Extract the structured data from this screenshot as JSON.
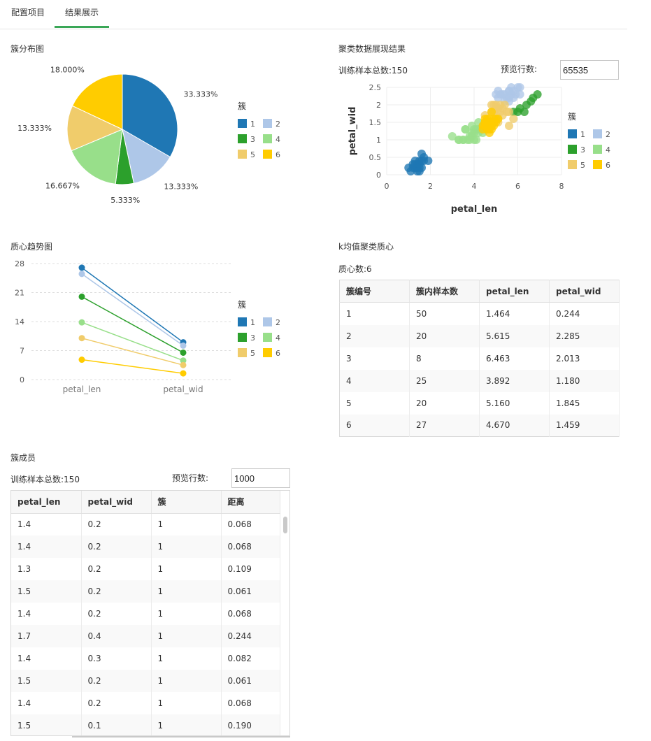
{
  "tabs": [
    "配置项目",
    "结果展示"
  ],
  "colors": [
    "#1f77b4",
    "#aec7e8",
    "#2ca02c",
    "#98df8a",
    "#f0cc6b",
    "#ffcc00"
  ],
  "pie": {
    "title": "簇分布图",
    "legend_title": "簇",
    "chart_data": {
      "type": "pie",
      "labels": [
        "1",
        "2",
        "3",
        "4",
        "5",
        "6"
      ],
      "values": [
        33.333,
        13.333,
        5.333,
        16.667,
        13.333,
        18.0
      ],
      "value_labels": [
        "33.333%",
        "13.333%",
        "5.333%",
        "16.667%",
        "13.333%",
        "18.000%"
      ]
    }
  },
  "scatter": {
    "title": "聚类数据展现结果",
    "sample_label": "训练样本总数:150",
    "preview_label": "预览行数:",
    "preview_value": "65535",
    "legend_title": "簇",
    "chart_data": {
      "type": "scatter",
      "xlabel": "petal_len",
      "ylabel": "petal_wid",
      "xlim": [
        0,
        8
      ],
      "ylim": [
        0,
        2.5
      ],
      "xticks": [
        "0",
        "2",
        "4",
        "6",
        "8"
      ],
      "yticks": [
        "0",
        "0.5",
        "1",
        "1.5",
        "2",
        "2.5"
      ],
      "series": [
        {
          "name": "1",
          "points": [
            [
              1.4,
              0.2
            ],
            [
              1.3,
              0.2
            ],
            [
              1.5,
              0.2
            ],
            [
              1.7,
              0.4
            ],
            [
              1.4,
              0.3
            ],
            [
              1.5,
              0.1
            ],
            [
              1.6,
              0.2
            ],
            [
              1.1,
              0.1
            ],
            [
              1.2,
              0.2
            ],
            [
              1.0,
              0.2
            ],
            [
              1.9,
              0.4
            ],
            [
              1.6,
              0.6
            ],
            [
              1.5,
              0.4
            ],
            [
              1.3,
              0.3
            ],
            [
              1.4,
              0.1
            ],
            [
              1.7,
              0.5
            ],
            [
              1.2,
              0.3
            ],
            [
              1.5,
              0.3
            ],
            [
              1.6,
              0.4
            ],
            [
              1.3,
              0.4
            ]
          ]
        },
        {
          "name": "2",
          "points": [
            [
              5.1,
              2.4
            ],
            [
              5.6,
              2.4
            ],
            [
              5.4,
              2.3
            ],
            [
              6.1,
              2.5
            ],
            [
              5.7,
              2.5
            ],
            [
              5.9,
              2.3
            ],
            [
              5.2,
              2.3
            ],
            [
              5.5,
              2.2
            ],
            [
              5.8,
              2.2
            ],
            [
              6.0,
              2.5
            ],
            [
              5.3,
              2.3
            ],
            [
              5.6,
              2.1
            ],
            [
              5.0,
              2.3
            ],
            [
              5.7,
              2.3
            ],
            [
              5.8,
              2.4
            ],
            [
              5.4,
              2.1
            ],
            [
              5.1,
              2.2
            ],
            [
              5.6,
              2.2
            ],
            [
              6.1,
              2.3
            ],
            [
              5.6,
              2.4
            ]
          ]
        },
        {
          "name": "3",
          "points": [
            [
              6.6,
              2.1
            ],
            [
              6.3,
              1.8
            ],
            [
              5.8,
              1.8
            ],
            [
              6.1,
              1.9
            ],
            [
              6.4,
              2.0
            ],
            [
              6.7,
              2.2
            ],
            [
              6.9,
              2.3
            ],
            [
              6.0,
              1.8
            ]
          ]
        },
        {
          "name": "4",
          "points": [
            [
              3.3,
              1.0
            ],
            [
              3.5,
              1.0
            ],
            [
              3.9,
              1.1
            ],
            [
              3.6,
              1.3
            ],
            [
              4.0,
              1.0
            ],
            [
              3.7,
              1.0
            ],
            [
              3.0,
              1.1
            ],
            [
              3.8,
              1.1
            ],
            [
              4.1,
              1.3
            ],
            [
              4.2,
              1.2
            ],
            [
              3.9,
              1.2
            ],
            [
              4.0,
              1.3
            ],
            [
              3.5,
              1.0
            ],
            [
              3.3,
              1.0
            ],
            [
              4.4,
              1.4
            ],
            [
              4.3,
              1.3
            ],
            [
              4.1,
              1.0
            ],
            [
              3.9,
              1.4
            ],
            [
              4.2,
              1.3
            ],
            [
              4.5,
              1.3
            ],
            [
              3.6,
              1.3
            ],
            [
              4.0,
              1.2
            ],
            [
              4.4,
              1.2
            ],
            [
              4.2,
              1.5
            ],
            [
              3.8,
              1.0
            ]
          ]
        },
        {
          "name": "5",
          "points": [
            [
              4.9,
              1.8
            ],
            [
              5.1,
              1.9
            ],
            [
              5.0,
              2.0
            ],
            [
              4.8,
              1.8
            ],
            [
              5.6,
              1.4
            ],
            [
              5.1,
              1.5
            ],
            [
              5.3,
              1.9
            ],
            [
              5.5,
              1.8
            ],
            [
              4.5,
              1.7
            ],
            [
              5.8,
              1.6
            ],
            [
              4.9,
              2.0
            ],
            [
              5.0,
              1.7
            ],
            [
              5.2,
              2.0
            ],
            [
              5.4,
              2.0
            ],
            [
              5.1,
              1.6
            ],
            [
              4.8,
              2.0
            ],
            [
              5.6,
              1.8
            ],
            [
              5.3,
              1.7
            ],
            [
              5.0,
              1.9
            ],
            [
              5.2,
              1.8
            ]
          ]
        },
        {
          "name": "6",
          "points": [
            [
              4.7,
              1.4
            ],
            [
              4.5,
              1.5
            ],
            [
              4.9,
              1.5
            ],
            [
              4.6,
              1.5
            ],
            [
              4.7,
              1.6
            ],
            [
              4.4,
              1.4
            ],
            [
              4.8,
              1.8
            ],
            [
              5.0,
              1.5
            ],
            [
              4.5,
              1.6
            ],
            [
              4.6,
              1.4
            ],
            [
              4.7,
              1.5
            ],
            [
              4.8,
              1.4
            ],
            [
              4.5,
              1.5
            ],
            [
              5.1,
              1.6
            ],
            [
              4.9,
              1.5
            ],
            [
              4.6,
              1.3
            ],
            [
              4.7,
              1.2
            ],
            [
              4.8,
              1.5
            ],
            [
              4.4,
              1.3
            ],
            [
              4.9,
              1.4
            ],
            [
              4.5,
              1.4
            ],
            [
              5.0,
              1.6
            ],
            [
              4.6,
              1.6
            ],
            [
              4.8,
              1.3
            ],
            [
              4.7,
              1.3
            ],
            [
              4.5,
              1.4
            ],
            [
              4.9,
              1.6
            ]
          ]
        }
      ]
    }
  },
  "trend": {
    "title": "质心趋势图",
    "legend_title": "簇",
    "chart_data": {
      "type": "line",
      "categories": [
        "petal_len",
        "petal_wid"
      ],
      "ylim": [
        0,
        28
      ],
      "yticks": [
        "0",
        "7",
        "14",
        "21",
        "28"
      ],
      "series": [
        {
          "name": "1",
          "values": [
            27,
            9
          ]
        },
        {
          "name": "2",
          "values": [
            25.5,
            8.2
          ]
        },
        {
          "name": "3",
          "values": [
            20,
            6.5
          ]
        },
        {
          "name": "4",
          "values": [
            13.8,
            4.6
          ]
        },
        {
          "name": "5",
          "values": [
            10,
            3.5
          ]
        },
        {
          "name": "6",
          "values": [
            4.8,
            1.5
          ]
        }
      ]
    }
  },
  "centroids": {
    "title": "k均值聚类质心",
    "count_label": "质心数:6",
    "headers": [
      "簇编号",
      "簇内样本数",
      "petal_len",
      "petal_wid"
    ],
    "rows": [
      [
        "1",
        "50",
        "1.464",
        "0.244"
      ],
      [
        "2",
        "20",
        "5.615",
        "2.285"
      ],
      [
        "3",
        "8",
        "6.463",
        "2.013"
      ],
      [
        "4",
        "25",
        "3.892",
        "1.180"
      ],
      [
        "5",
        "20",
        "5.160",
        "1.845"
      ],
      [
        "6",
        "27",
        "4.670",
        "1.459"
      ]
    ]
  },
  "members": {
    "title": "簇成员",
    "sample_label": "训练样本总数:150",
    "preview_label": "预览行数:",
    "preview_value": "1000",
    "headers": [
      "petal_len",
      "petal_wid",
      "簇",
      "距离"
    ],
    "rows": [
      [
        "1.4",
        "0.2",
        "1",
        "0.068"
      ],
      [
        "1.4",
        "0.2",
        "1",
        "0.068"
      ],
      [
        "1.3",
        "0.2",
        "1",
        "0.109"
      ],
      [
        "1.5",
        "0.2",
        "1",
        "0.061"
      ],
      [
        "1.4",
        "0.2",
        "1",
        "0.068"
      ],
      [
        "1.7",
        "0.4",
        "1",
        "0.244"
      ],
      [
        "1.4",
        "0.3",
        "1",
        "0.082"
      ],
      [
        "1.5",
        "0.2",
        "1",
        "0.061"
      ],
      [
        "1.4",
        "0.2",
        "1",
        "0.068"
      ],
      [
        "1.5",
        "0.1",
        "1",
        "0.190"
      ]
    ]
  }
}
